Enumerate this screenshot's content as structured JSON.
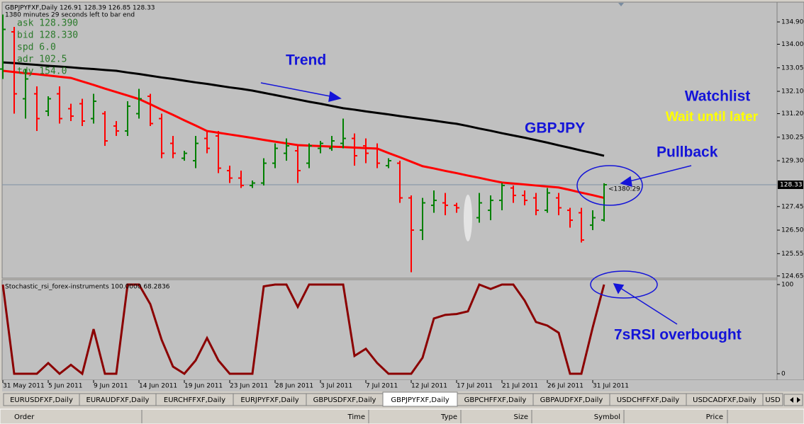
{
  "chart_data": [
    {
      "type": "ohlc",
      "header": "GBPJPYFXF,Daily  126.91 128.39 126.85 128.33",
      "countdown": "1380 minutes 29 seconds left to bar end",
      "info": [
        "ask  128.390",
        "bid  128.330",
        "spd  6.0",
        "adr  102.5",
        "tdy  154.0"
      ],
      "categories": [
        "31 May 2011",
        null,
        null,
        null,
        "5 Jun 2011",
        null,
        null,
        null,
        "9 Jun 2011",
        null,
        null,
        null,
        "14 Jun 2011",
        null,
        null,
        null,
        "19 Jun 2011",
        null,
        null,
        null,
        "23 Jun 2011",
        null,
        null,
        null,
        "28 Jun 2011",
        null,
        null,
        null,
        "3 Jul 2011",
        null,
        null,
        null,
        "7 Jul 2011",
        null,
        null,
        null,
        "12 Jul 2011",
        null,
        null,
        null,
        "17 Jul 2011",
        null,
        null,
        null,
        "21 Jul 2011",
        null,
        null,
        null,
        "26 Jul 2011",
        null,
        null,
        null,
        "31 Jul 2011",
        null
      ],
      "open": [
        133.0,
        134.5,
        131.8,
        132.0,
        131.3,
        132.0,
        131.4,
        131.6,
        131.0,
        131.2,
        130.7,
        130.5,
        131.2,
        131.9,
        131.0,
        130.0,
        129.4,
        129.3,
        130.2,
        130.3,
        128.9,
        128.6,
        128.3,
        128.4,
        129.2,
        129.6,
        129.7,
        129.2,
        129.8,
        129.8,
        130.0,
        130.2,
        129.9,
        129.8,
        129.1,
        129.2,
        127.8,
        126.5,
        127.5,
        127.6,
        127.5,
        127.1,
        127.0,
        127.3,
        127.7,
        128.2,
        127.9,
        127.8,
        127.3,
        127.8,
        127.3,
        127.2,
        126.7,
        126.91
      ],
      "high": [
        135.2,
        134.7,
        133.0,
        132.3,
        131.9,
        132.3,
        131.6,
        131.8,
        132.0,
        131.3,
        130.9,
        131.7,
        132.2,
        132.0,
        131.2,
        130.3,
        129.7,
        130.3,
        130.5,
        130.5,
        129.1,
        128.9,
        128.5,
        129.4,
        130.0,
        130.2,
        129.9,
        130.0,
        130.1,
        130.3,
        131.0,
        130.4,
        130.2,
        130.0,
        129.4,
        129.3,
        127.9,
        127.8,
        128.1,
        128.0,
        127.6,
        127.2,
        128.0,
        127.9,
        128.4,
        128.3,
        128.1,
        128.0,
        128.2,
        128.0,
        127.4,
        127.4,
        127.3,
        128.39
      ],
      "low": [
        132.6,
        131.2,
        131.0,
        130.5,
        131.1,
        130.8,
        130.9,
        130.7,
        130.8,
        129.9,
        130.3,
        130.3,
        131.0,
        130.7,
        129.4,
        129.4,
        129.3,
        129.0,
        129.6,
        128.8,
        128.4,
        128.2,
        128.2,
        128.3,
        129.0,
        129.3,
        128.4,
        129.0,
        129.6,
        129.7,
        129.8,
        129.1,
        129.2,
        129.0,
        129.0,
        127.6,
        124.8,
        126.1,
        127.2,
        127.1,
        127.2,
        126.7,
        126.8,
        126.9,
        127.3,
        127.6,
        127.5,
        127.1,
        127.2,
        127.1,
        126.6,
        126.0,
        126.5,
        126.85
      ],
      "close": [
        134.6,
        132.0,
        132.6,
        131.0,
        131.8,
        131.0,
        131.1,
        130.9,
        131.7,
        130.1,
        130.5,
        131.5,
        131.8,
        130.8,
        129.6,
        129.6,
        129.6,
        130.0,
        129.8,
        129.0,
        128.6,
        128.3,
        128.4,
        129.2,
        129.8,
        129.9,
        128.9,
        129.9,
        130.0,
        130.1,
        130.2,
        129.5,
        129.6,
        129.2,
        129.3,
        127.8,
        126.5,
        127.6,
        127.7,
        127.5,
        127.4,
        126.9,
        127.6,
        127.7,
        128.3,
        127.9,
        127.7,
        127.3,
        128.0,
        127.4,
        126.9,
        126.1,
        127.0,
        128.33
      ],
      "up_color": "#008000",
      "down_color": "#ff0000",
      "lines": [
        {
          "color": "#000000",
          "values": [
            133.27,
            133.24,
            133.2,
            133.17,
            133.13,
            133.1,
            133.07,
            133.03,
            133.0,
            132.96,
            132.93,
            132.86,
            132.8,
            132.73,
            132.66,
            132.6,
            132.53,
            132.46,
            132.4,
            132.33,
            132.26,
            132.2,
            132.13,
            132.04,
            131.95,
            131.86,
            131.77,
            131.68,
            131.6,
            131.51,
            131.42,
            131.36,
            131.29,
            131.23,
            131.17,
            131.1,
            131.04,
            130.98,
            130.92,
            130.85,
            130.79,
            130.7,
            130.6,
            130.51,
            130.41,
            130.32,
            130.23,
            130.13,
            130.03,
            129.92,
            129.82,
            129.71,
            129.61,
            129.5
          ]
        },
        {
          "color": "#ff0000",
          "values": [
            132.93,
            132.88,
            132.83,
            132.79,
            132.74,
            132.69,
            132.64,
            132.5,
            132.36,
            132.21,
            132.07,
            131.93,
            131.79,
            131.58,
            131.36,
            131.15,
            130.93,
            130.72,
            130.5,
            130.43,
            130.36,
            130.29,
            130.22,
            130.14,
            130.07,
            130.0,
            129.93,
            129.91,
            129.89,
            129.87,
            129.85,
            129.83,
            129.81,
            129.79,
            129.61,
            129.44,
            129.26,
            129.08,
            128.99,
            128.89,
            128.8,
            128.7,
            128.61,
            128.51,
            128.42,
            128.38,
            128.34,
            128.3,
            128.26,
            128.22,
            128.12,
            128.01,
            127.91,
            127.8
          ]
        }
      ],
      "ylim": [
        124.56,
        135.7
      ],
      "yticks": [
        {
          "value": 134.9,
          "label": "134.90"
        },
        {
          "value": 134,
          "label": "134.00"
        },
        {
          "value": 133.05,
          "label": "133.05"
        },
        {
          "value": 132.1,
          "label": "132.10"
        },
        {
          "value": 131.2,
          "label": "131.20"
        },
        {
          "value": 130.25,
          "label": "130.25"
        },
        {
          "value": 129.3,
          "label": "129.30"
        },
        {
          "value": 127.45,
          "label": "127.45"
        },
        {
          "value": 126.5,
          "label": "126.50"
        },
        {
          "value": 125.55,
          "label": "125.55"
        },
        {
          "value": 124.65,
          "label": "124.65"
        }
      ],
      "current_price": 128.33,
      "bar_timer": "<1380:29",
      "annotations": {
        "trend": "Trend",
        "watchlist": "Watchlist",
        "wait": "Wait until later",
        "symbol": "GBPJPY",
        "pullback": "Pullback",
        "overbought": "7sRSI overbought"
      }
    },
    {
      "type": "line",
      "title": "Stochastic_rsi_forex-instruments 100.0000 68.2836",
      "color": "#8b0000",
      "values": [
        100,
        0,
        0,
        0,
        12,
        0,
        10,
        0,
        50,
        0,
        0,
        100,
        100,
        78,
        38,
        8,
        0,
        15,
        40,
        15,
        0,
        0,
        0,
        98,
        100,
        100,
        75,
        100,
        100,
        100,
        100,
        20,
        28,
        12,
        0,
        0,
        0,
        18,
        62,
        66,
        67,
        70,
        100,
        95,
        100,
        100,
        82,
        58,
        54,
        46,
        0,
        0,
        52,
        100
      ],
      "ylim": [
        -7.14,
        105.56
      ],
      "yticks": [
        0,
        100
      ]
    }
  ],
  "tabs": [
    "EURUSDFXF,Daily",
    "EURAUDFXF,Daily",
    "EURCHFFXF,Daily",
    "EURJPYFXF,Daily",
    "GBPUSDFXF,Daily",
    "GBPJPYFXF,Daily",
    "GBPCHFFXF,Daily",
    "GBPAUDFXF,Daily",
    "USDCHFFXF,Daily",
    "USDCADFXF,Daily",
    "USD"
  ],
  "active_tab": 5,
  "terminal_columns": [
    "Order",
    "Time",
    "Type",
    "Size",
    "Symbol",
    "Price"
  ]
}
